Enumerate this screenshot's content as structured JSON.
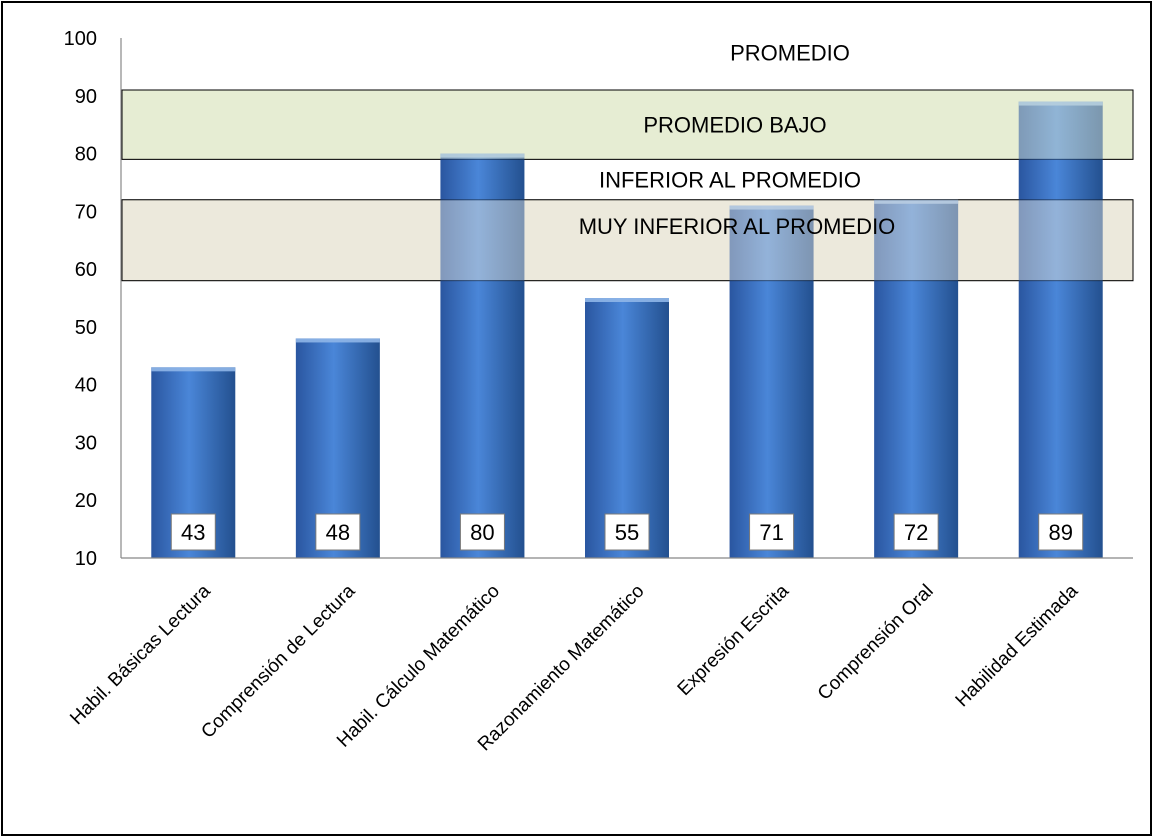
{
  "chart_data": {
    "type": "bar",
    "categories": [
      "Habil. Básicas Lectura",
      "Comprensión de Lectura",
      "Habil. Cálculo Matemático",
      "Razonamiento Matemático",
      "Expresión Escrita",
      "Comprensión Oral",
      "Habilidad Estimada"
    ],
    "values": [
      43,
      48,
      80,
      55,
      71,
      72,
      89
    ],
    "data_labels": [
      "43",
      "48",
      "80",
      "55",
      "71",
      "72",
      "89"
    ],
    "ylim": [
      10,
      100
    ],
    "yticks": [
      10,
      20,
      30,
      40,
      50,
      60,
      70,
      80,
      90,
      100
    ],
    "grid": false,
    "legend": "none",
    "bar_color": "#3a6fc0",
    "bands": [
      {
        "label": "PROMEDIO",
        "from": 91,
        "to": 100,
        "fill": "none",
        "label_at": 97.5
      },
      {
        "label": "PROMEDIO BAJO",
        "from": 79,
        "to": 91,
        "fill": "#e6edd3",
        "label_at": 85
      },
      {
        "label": "INFERIOR AL PROMEDIO",
        "from": 72,
        "to": 79,
        "fill": "none",
        "label_at": 75.5
      },
      {
        "label": "MUY INFERIOR AL PROMEDIO",
        "from": 58,
        "to": 72,
        "fill": "#ece9dc",
        "label_at": 67.5
      }
    ]
  }
}
